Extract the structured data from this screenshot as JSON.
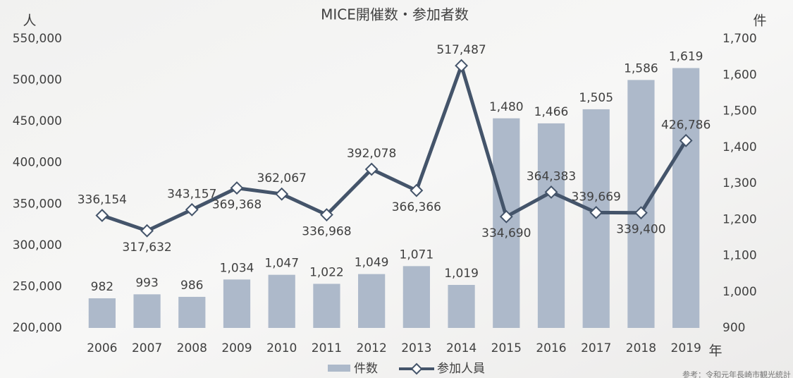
{
  "chart_data": {
    "type": "bar-line",
    "title": "MICE開催数・参加者数",
    "y_label": "人",
    "y2_label": "件",
    "x_label": "年",
    "source": "参考：令和元年長崎市観光統計",
    "categories": [
      "2006",
      "2007",
      "2008",
      "2009",
      "2010",
      "2011",
      "2012",
      "2013",
      "2014",
      "2015",
      "2016",
      "2017",
      "2018",
      "2019"
    ],
    "series": [
      {
        "name": "件数",
        "type": "bar",
        "axis": "y2",
        "color": "#adb9ca",
        "values": [
          982,
          993,
          986,
          1034,
          1047,
          1022,
          1049,
          1071,
          1019,
          1480,
          1466,
          1505,
          1586,
          1619
        ],
        "value_labels": [
          "982",
          "993",
          "986",
          "1,034",
          "1,047",
          "1,022",
          "1,049",
          "1,071",
          "1,019",
          "1,480",
          "1,466",
          "1,505",
          "1,586",
          "1,619"
        ]
      },
      {
        "name": "参加人員",
        "type": "line",
        "color": "#44546a",
        "values": [
          336154,
          317632,
          343157,
          369368,
          362067,
          336968,
          392078,
          366366,
          517487,
          334690,
          364383,
          339669,
          339400,
          426786
        ],
        "value_labels": [
          "336,154",
          "317,632",
          "343,157",
          "369,368",
          "362,067",
          "336,968",
          "392,078",
          "366,366",
          "517,487",
          "334,690",
          "364,383",
          "339,669",
          "339,400",
          "426,786"
        ]
      }
    ],
    "ylim": [
      200000,
      550000
    ],
    "yticks": [
      {
        "value": 200000,
        "label": "200,000"
      },
      {
        "value": 250000,
        "label": "250,000"
      },
      {
        "value": 300000,
        "label": "300,000"
      },
      {
        "value": 350000,
        "label": "350,000"
      },
      {
        "value": 400000,
        "label": "400,000"
      },
      {
        "value": 450000,
        "label": "450,000"
      },
      {
        "value": 500000,
        "label": "500,000"
      },
      {
        "value": 550000,
        "label": "550,000"
      }
    ],
    "y2lim": [
      900,
      1700
    ],
    "y2ticks": [
      900,
      {
        "value": 1000,
        "label": "1,000"
      },
      {
        "value": 1100,
        "label": "1,100"
      },
      {
        "value": 1200,
        "label": "1,200"
      },
      {
        "value": 1300,
        "label": "1,300"
      },
      {
        "value": 1400,
        "label": "1,400"
      },
      {
        "value": 1500,
        "label": "1,500"
      },
      {
        "value": 1600,
        "label": "1,600"
      },
      {
        "value": 1700,
        "label": "1,700"
      }
    ]
  }
}
